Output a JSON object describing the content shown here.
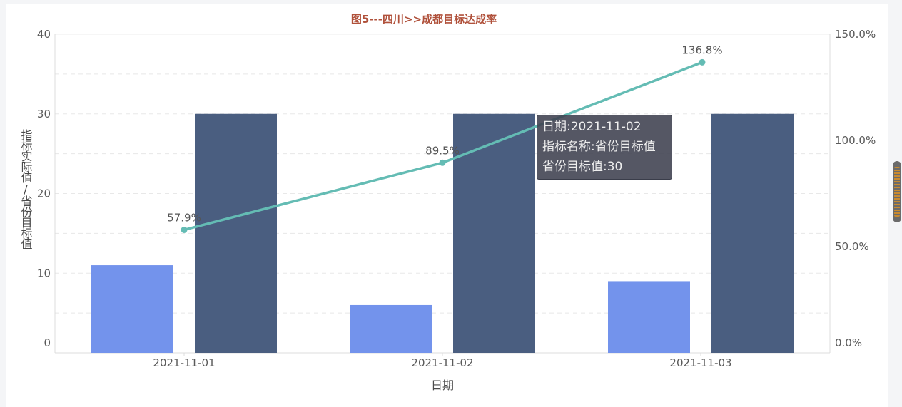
{
  "chart_data": {
    "type": "bar+line",
    "title": "图5---四川>>成都目标达成率",
    "xlabel": "日期",
    "ylabel": "指标实际值/省份目标值",
    "categories": [
      "2021-11-01",
      "2021-11-02",
      "2021-11-03"
    ],
    "ylim": [
      0,
      40
    ],
    "y_ticks": [
      0,
      10,
      20,
      30,
      40
    ],
    "y2lim": [
      0,
      1.5
    ],
    "y2_ticks": [
      "0.0%",
      "50.0%",
      "100.0%",
      "150.0%"
    ],
    "grid": "dashed-horizontal",
    "series": [
      {
        "type": "bar",
        "values": [
          11,
          6,
          9
        ],
        "color": "#7393ec"
      },
      {
        "type": "bar",
        "values": [
          30,
          30,
          30
        ],
        "color": "#4a5e80"
      },
      {
        "type": "line",
        "axis": "right",
        "values": [
          0.579,
          0.895,
          1.368
        ],
        "labels": [
          "57.9%",
          "89.5%",
          "136.8%"
        ],
        "color": "#64bcb4"
      }
    ]
  },
  "tooltip": {
    "line1": "日期:2021-11-02",
    "line2": "指标名称:省份目标值",
    "line3": "省份目标值:30"
  }
}
